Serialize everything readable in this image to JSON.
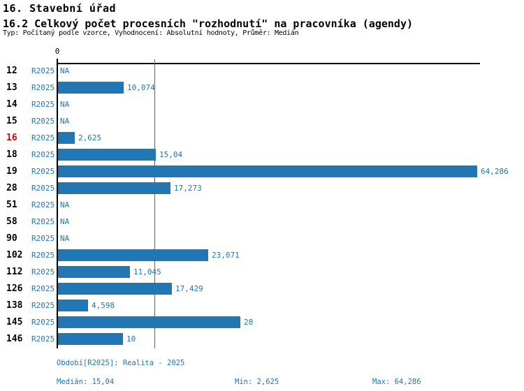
{
  "header": {
    "title": "16. Stavební úřad",
    "subtitle": "16.2 Celkový počet procesních \"rozhodnutí\" na pracovníka (agendy)",
    "meta": "Typ: Počítaný podle vzorce, Vyhodnocení: Absolutní hodnoty, Průměr: Medián"
  },
  "colors": {
    "accent_blue": "#2077b4",
    "highlight_red": "#e60000",
    "axis_black": "#000000"
  },
  "axis": {
    "zero_label": "0"
  },
  "rows": [
    {
      "num": "12",
      "period": "R2025",
      "value": null,
      "label": "NA",
      "highlight": false
    },
    {
      "num": "13",
      "period": "R2025",
      "value": 10.074,
      "label": "10,074",
      "highlight": false
    },
    {
      "num": "14",
      "period": "R2025",
      "value": null,
      "label": "NA",
      "highlight": false
    },
    {
      "num": "15",
      "period": "R2025",
      "value": null,
      "label": "NA",
      "highlight": false
    },
    {
      "num": "16",
      "period": "R2025",
      "value": 2.625,
      "label": "2,625",
      "highlight": true
    },
    {
      "num": "18",
      "period": "R2025",
      "value": 15.04,
      "label": "15,04",
      "highlight": false
    },
    {
      "num": "19",
      "period": "R2025",
      "value": 64.286,
      "label": "64,286",
      "highlight": false
    },
    {
      "num": "28",
      "period": "R2025",
      "value": 17.273,
      "label": "17,273",
      "highlight": false
    },
    {
      "num": "51",
      "period": "R2025",
      "value": null,
      "label": "NA",
      "highlight": false
    },
    {
      "num": "58",
      "period": "R2025",
      "value": null,
      "label": "NA",
      "highlight": false
    },
    {
      "num": "90",
      "period": "R2025",
      "value": null,
      "label": "NA",
      "highlight": false
    },
    {
      "num": "102",
      "period": "R2025",
      "value": 23.071,
      "label": "23,071",
      "highlight": false
    },
    {
      "num": "112",
      "period": "R2025",
      "value": 11.045,
      "label": "11,045",
      "highlight": false
    },
    {
      "num": "126",
      "period": "R2025",
      "value": 17.429,
      "label": "17,429",
      "highlight": false
    },
    {
      "num": "138",
      "period": "R2025",
      "value": 4.598,
      "label": "4,598",
      "highlight": false
    },
    {
      "num": "145",
      "period": "R2025",
      "value": 28,
      "label": "28",
      "highlight": false
    },
    {
      "num": "146",
      "period": "R2025",
      "value": 10,
      "label": "10",
      "highlight": false
    }
  ],
  "footer": {
    "period_info": "Období[R2025]: Realita - 2025",
    "median": "Medián: 15,04",
    "min": "Min: 2,625",
    "max": "Max: 64,286"
  },
  "chart_data": {
    "type": "bar",
    "orientation": "horizontal",
    "title": "16.2 Celkový počet procesních \"rozhodnutí\" na pracovníka (agendy)",
    "subtitle_meta": "Typ: Počítaný podle vzorce, Vyhodnocení: Absolutní hodnoty, Průměr: Medián",
    "categories": [
      "12",
      "13",
      "14",
      "15",
      "16",
      "18",
      "19",
      "28",
      "51",
      "58",
      "90",
      "102",
      "112",
      "126",
      "138",
      "145",
      "146"
    ],
    "series": [
      {
        "name": "R2025",
        "values": [
          null,
          10.074,
          null,
          null,
          2.625,
          15.04,
          64.286,
          17.273,
          null,
          null,
          null,
          23.071,
          11.045,
          17.429,
          4.598,
          28,
          10
        ]
      }
    ],
    "value_labels": [
      "NA",
      "10,074",
      "NA",
      "NA",
      "2,625",
      "15,04",
      "64,286",
      "17,273",
      "NA",
      "NA",
      "NA",
      "23,071",
      "11,045",
      "17,429",
      "4,598",
      "28",
      "10"
    ],
    "highlighted_category": "16",
    "xlabel": "",
    "ylabel": "",
    "xlim": [
      0,
      65
    ],
    "grid": false,
    "legend": false,
    "reference_lines": [
      {
        "name": "median",
        "value": 15.04
      }
    ],
    "stats": {
      "median": 15.04,
      "min": 2.625,
      "max": 64.286
    },
    "bar_color": "#2077b4"
  }
}
